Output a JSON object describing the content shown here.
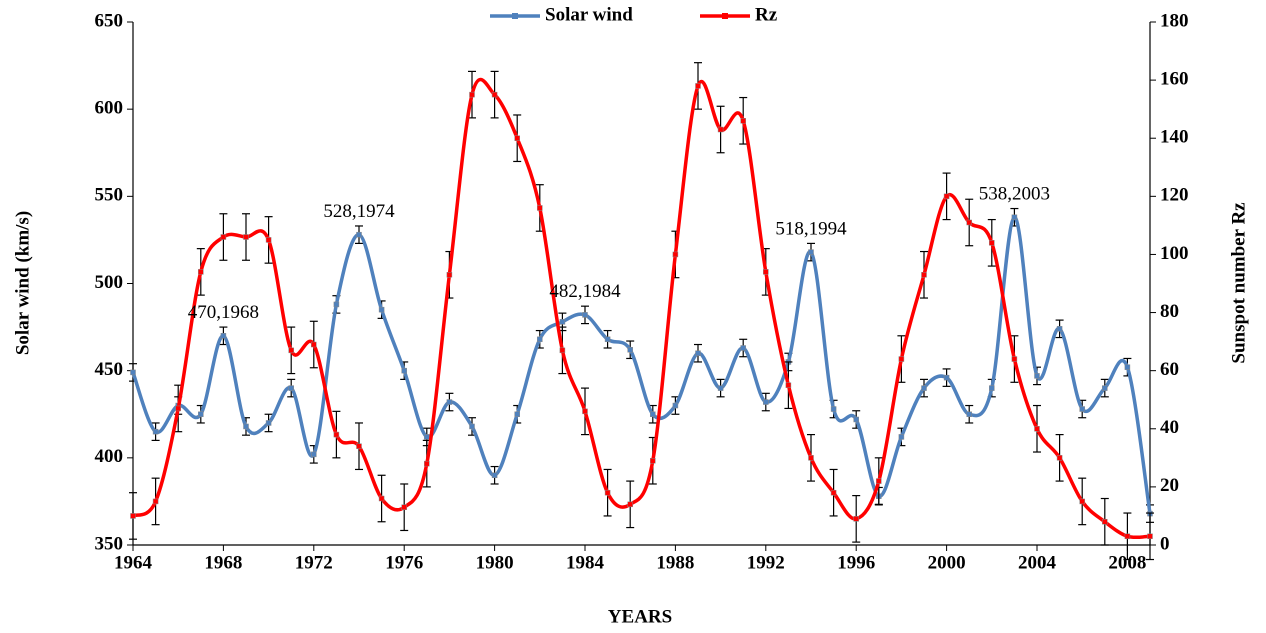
{
  "chart_data": {
    "type": "line",
    "x_label": "YEARS",
    "y_label": "Solar wind (km/s)",
    "y2_label": "Sunspot number Rz",
    "x": [
      1964,
      1965,
      1966,
      1967,
      1968,
      1969,
      1970,
      1971,
      1972,
      1973,
      1974,
      1975,
      1976,
      1977,
      1978,
      1979,
      1980,
      1981,
      1982,
      1983,
      1984,
      1985,
      1986,
      1987,
      1988,
      1989,
      1990,
      1991,
      1992,
      1993,
      1994,
      1995,
      1996,
      1997,
      1998,
      1999,
      2000,
      2001,
      2002,
      2003,
      2004,
      2005,
      2006,
      2007,
      2008,
      2009
    ],
    "xlim": [
      1964,
      2009
    ],
    "xticks": [
      1964,
      1968,
      1972,
      1976,
      1980,
      1984,
      1988,
      1992,
      1996,
      2000,
      2004,
      2008
    ],
    "ylim": [
      350,
      650
    ],
    "yticks": [
      350,
      400,
      450,
      500,
      550,
      600,
      650
    ],
    "y2lim": [
      0,
      180
    ],
    "y2ticks": [
      0,
      20,
      40,
      60,
      80,
      100,
      120,
      140,
      160,
      180
    ],
    "legend": "upper center",
    "series": [
      {
        "name": "Solar wind",
        "color": "#4f81bd",
        "axis": "y",
        "values": [
          449,
          415,
          430,
          425,
          470,
          418,
          420,
          440,
          402,
          488,
          528,
          485,
          450,
          412,
          432,
          418,
          390,
          425,
          468,
          478,
          482,
          468,
          462,
          425,
          430,
          460,
          440,
          463,
          432,
          455,
          518,
          428,
          422,
          378,
          412,
          440,
          446,
          425,
          440,
          538,
          447,
          474,
          428,
          440,
          452,
          368
        ],
        "errors": [
          5,
          5,
          5,
          5,
          5,
          5,
          5,
          5,
          5,
          5,
          5,
          5,
          5,
          5,
          5,
          5,
          5,
          5,
          5,
          5,
          5,
          5,
          5,
          5,
          5,
          5,
          5,
          5,
          5,
          5,
          5,
          5,
          5,
          5,
          5,
          5,
          5,
          5,
          5,
          5,
          5,
          5,
          5,
          5,
          5,
          5
        ]
      },
      {
        "name": "Rz",
        "color": "#ff0000",
        "axis": "y2",
        "values": [
          10,
          15,
          47,
          94,
          106,
          106,
          105,
          67,
          69,
          38,
          34,
          16,
          13,
          28,
          93,
          155,
          155,
          140,
          116,
          67,
          46,
          18,
          14,
          29,
          100,
          158,
          143,
          146,
          94,
          55,
          30,
          18,
          9,
          22,
          64,
          93,
          120,
          111,
          104,
          64,
          40,
          30,
          15,
          8,
          3,
          3
        ],
        "errors": [
          8,
          8,
          8,
          8,
          8,
          8,
          8,
          8,
          8,
          8,
          8,
          8,
          8,
          8,
          8,
          8,
          8,
          8,
          8,
          8,
          8,
          8,
          8,
          8,
          8,
          8,
          8,
          8,
          8,
          8,
          8,
          8,
          8,
          8,
          8,
          8,
          8,
          8,
          8,
          8,
          8,
          8,
          8,
          8,
          8,
          8
        ]
      }
    ],
    "annotations": [
      {
        "text": "470,1968",
        "x": 1968,
        "y": 470
      },
      {
        "text": "528,1974",
        "x": 1974,
        "y": 528
      },
      {
        "text": "482,1984",
        "x": 1984,
        "y": 482
      },
      {
        "text": "518,1994",
        "x": 1994,
        "y": 518
      },
      {
        "text": "538,2003",
        "x": 2003,
        "y": 538
      }
    ]
  }
}
